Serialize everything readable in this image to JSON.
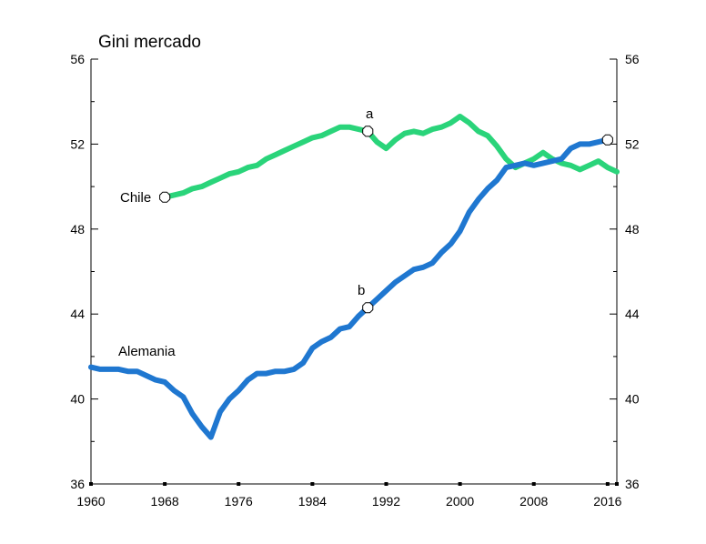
{
  "chart_data": {
    "type": "line",
    "title": "Gini mercado",
    "xlabel": "",
    "ylabel": "",
    "xlim": [
      1960,
      2017
    ],
    "ylim": [
      36,
      56
    ],
    "x_ticks": [
      1960,
      1968,
      1976,
      1984,
      1992,
      2000,
      2008,
      2016
    ],
    "y_ticks": [
      36,
      40,
      44,
      48,
      52,
      56
    ],
    "grid": false,
    "series": [
      {
        "name": "Chile",
        "color": "#2ad47a",
        "x": [
          1968,
          1969,
          1970,
          1971,
          1972,
          1973,
          1974,
          1975,
          1976,
          1977,
          1978,
          1979,
          1980,
          1981,
          1982,
          1983,
          1984,
          1985,
          1986,
          1987,
          1988,
          1989,
          1990,
          1991,
          1992,
          1993,
          1994,
          1995,
          1996,
          1997,
          1998,
          1999,
          2000,
          2001,
          2002,
          2003,
          2004,
          2005,
          2006,
          2007,
          2008,
          2009,
          2010,
          2011,
          2012,
          2013,
          2014,
          2015,
          2016,
          2017
        ],
        "values": [
          49.5,
          49.6,
          49.7,
          49.9,
          50.0,
          50.2,
          50.4,
          50.6,
          50.7,
          50.9,
          51.0,
          51.3,
          51.5,
          51.7,
          51.9,
          52.1,
          52.3,
          52.4,
          52.6,
          52.8,
          52.8,
          52.7,
          52.6,
          52.1,
          51.8,
          52.2,
          52.5,
          52.6,
          52.5,
          52.7,
          52.8,
          53.0,
          53.3,
          53.0,
          52.6,
          52.4,
          51.9,
          51.3,
          50.9,
          51.1,
          51.3,
          51.6,
          51.3,
          51.1,
          51.0,
          50.8,
          51.0,
          51.2,
          50.9,
          50.7
        ]
      },
      {
        "name": "Alemania",
        "color": "#1f77d0",
        "x": [
          1960,
          1961,
          1962,
          1963,
          1964,
          1965,
          1966,
          1967,
          1968,
          1969,
          1970,
          1971,
          1972,
          1973,
          1974,
          1975,
          1976,
          1977,
          1978,
          1979,
          1980,
          1981,
          1982,
          1983,
          1984,
          1985,
          1986,
          1987,
          1988,
          1989,
          1990,
          1991,
          1992,
          1993,
          1994,
          1995,
          1996,
          1997,
          1998,
          1999,
          2000,
          2001,
          2002,
          2003,
          2004,
          2005,
          2006,
          2007,
          2008,
          2009,
          2010,
          2011,
          2012,
          2013,
          2014,
          2015,
          2016
        ],
        "values": [
          41.5,
          41.4,
          41.4,
          41.4,
          41.3,
          41.3,
          41.1,
          40.9,
          40.8,
          40.4,
          40.1,
          39.3,
          38.7,
          38.2,
          39.4,
          40.0,
          40.4,
          40.9,
          41.2,
          41.2,
          41.3,
          41.3,
          41.4,
          41.7,
          42.4,
          42.7,
          42.9,
          43.3,
          43.4,
          43.9,
          44.3,
          44.7,
          45.1,
          45.5,
          45.8,
          46.1,
          46.2,
          46.4,
          46.9,
          47.3,
          47.9,
          48.8,
          49.4,
          49.9,
          50.3,
          50.9,
          51.0,
          51.1,
          51.0,
          51.1,
          51.2,
          51.3,
          51.8,
          52.0,
          52.0,
          52.1,
          52.2
        ]
      }
    ],
    "labels": [
      {
        "text": "Chile",
        "series": "Chile"
      },
      {
        "text": "Alemania",
        "series": "Alemania"
      }
    ],
    "annotations": [
      {
        "text": "a",
        "x": 1990,
        "y": 52.6
      },
      {
        "text": "b",
        "x": 1990,
        "y": 44.3
      }
    ],
    "markers": [
      {
        "x": 1968,
        "y": 49.5
      },
      {
        "x": 1990,
        "y": 52.6
      },
      {
        "x": 1990,
        "y": 44.3
      },
      {
        "x": 2016,
        "y": 52.2
      }
    ]
  }
}
